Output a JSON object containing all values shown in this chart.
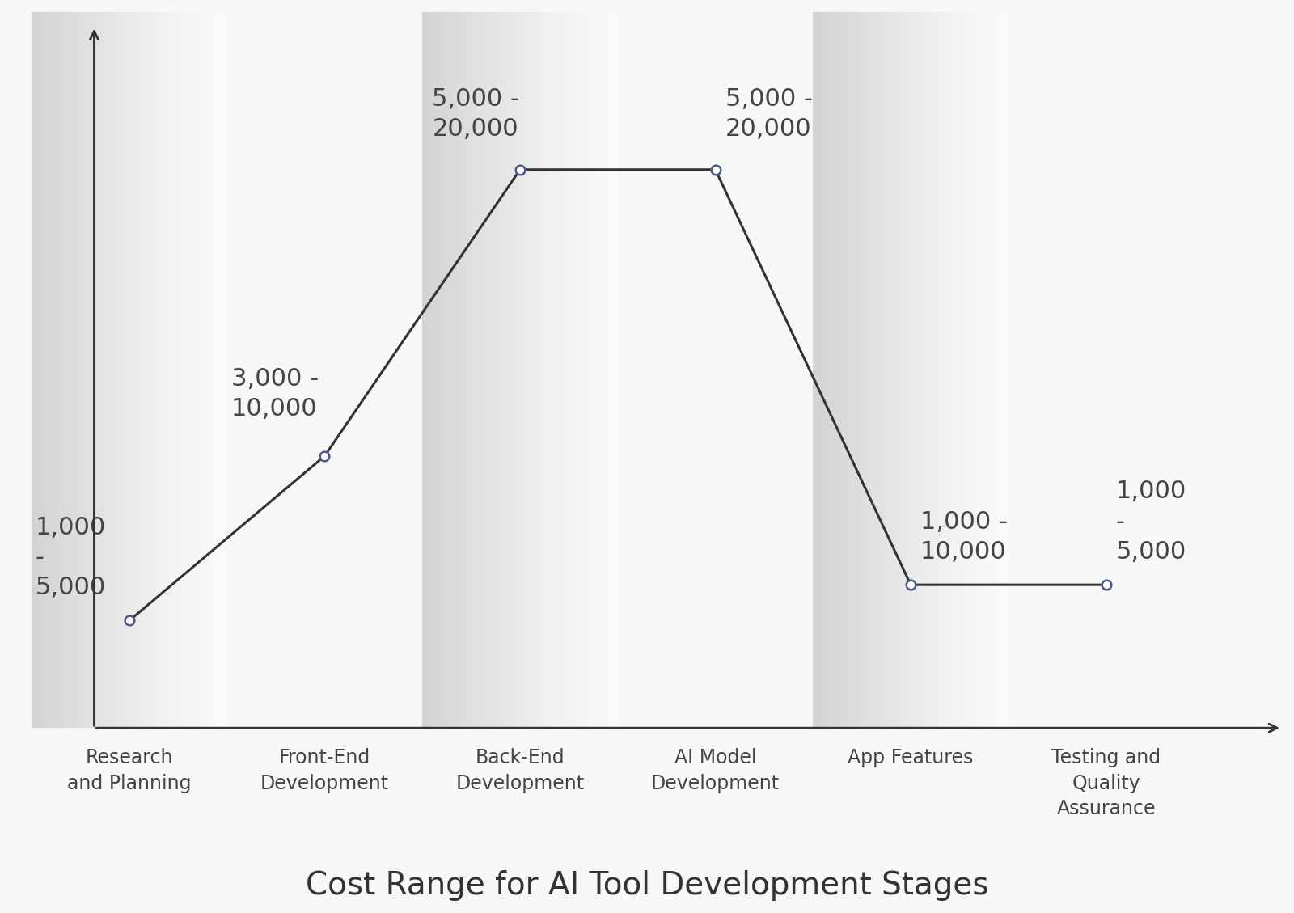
{
  "categories": [
    "Research\nand Planning",
    "Front-End\nDevelopment",
    "Back-End\nDevelopment",
    "AI Model\nDevelopment",
    "App Features",
    "Testing and\nQuality\nAssurance"
  ],
  "y_values": [
    1.5,
    3.8,
    7.8,
    7.8,
    2.0,
    2.0
  ],
  "labels": [
    "1,000\n-\n5,000",
    "3,000 -\n10,000",
    "5,000 -\n20,000",
    "5,000 -\n20,000",
    "1,000 -\n10,000",
    "1,000\n-\n5,000"
  ],
  "label_ha": [
    "left",
    "left",
    "left",
    "left",
    "left",
    "left"
  ],
  "label_offsets_x": [
    -0.48,
    -0.48,
    -0.45,
    0.05,
    0.05,
    0.05
  ],
  "label_offsets_y": [
    0.3,
    0.5,
    0.4,
    0.4,
    0.3,
    0.3
  ],
  "shaded_columns": [
    0,
    2,
    4
  ],
  "title": "Cost Range for AI Tool Development Stages",
  "background_color": "#f7f7f7",
  "line_color": "#333333",
  "marker_color": "#4a5a8a",
  "marker_facecolor": "#ffffff",
  "title_fontsize": 28,
  "label_fontsize": 22,
  "tick_fontsize": 17,
  "ylim": [
    0,
    10
  ],
  "xlim": [
    -0.6,
    5.9
  ]
}
